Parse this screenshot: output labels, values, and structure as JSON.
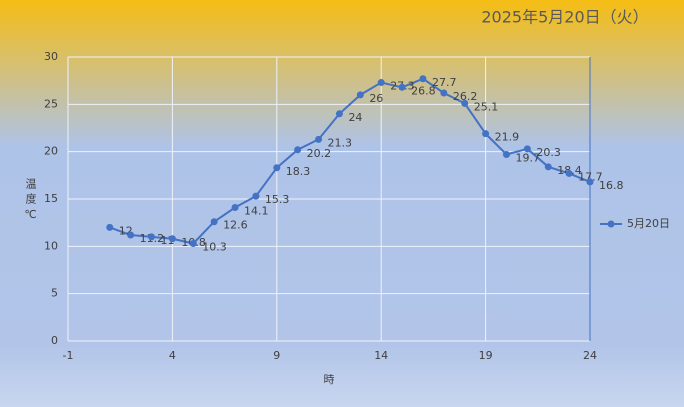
{
  "chart_data": {
    "type": "line",
    "title": "2025年5月20日（火）",
    "x_label": "時",
    "y_label": "温度℃",
    "x": [
      1,
      2,
      3,
      4,
      5,
      6,
      7,
      8,
      9,
      10,
      11,
      12,
      13,
      14,
      15,
      16,
      17,
      18,
      19,
      20,
      21,
      22,
      23,
      24
    ],
    "series": [
      {
        "name": "5月20日",
        "color": "#4472c4",
        "values": [
          12,
          11.2,
          11,
          10.8,
          10.3,
          12.6,
          14.1,
          15.3,
          18.3,
          20.2,
          21.3,
          24,
          26,
          27.3,
          26.8,
          27.7,
          26.2,
          25.1,
          21.9,
          19.7,
          20.3,
          18.4,
          17.7,
          16.8
        ]
      }
    ],
    "xlim": [
      -1,
      24
    ],
    "xticks": [
      -1,
      4,
      9,
      14,
      19,
      24
    ],
    "ylim": [
      0,
      30
    ],
    "yticks": [
      0,
      5,
      10,
      15,
      20,
      25,
      30
    ],
    "grid": true,
    "legend": "right"
  }
}
